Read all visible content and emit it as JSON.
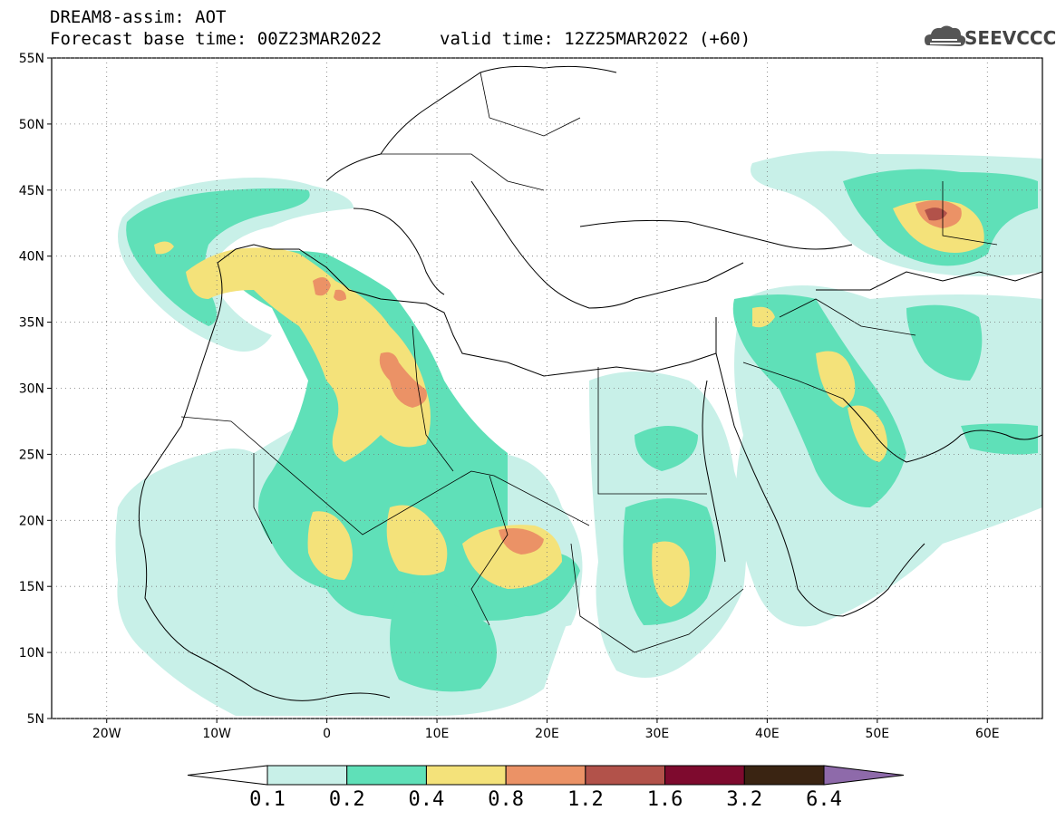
{
  "header": {
    "line1": "DREAM8-assim: AOT",
    "line2": "Forecast base time: 00Z23MAR2022",
    "line3": "valid time: 12Z25MAR2022 (+60)"
  },
  "logo": {
    "text": "SEEVCCC",
    "icon": "cloud-icon"
  },
  "axes": {
    "lon_min": -25,
    "lon_max": 65,
    "lat_min": 5,
    "lat_max": 55,
    "lat_ticks": [
      "55N",
      "50N",
      "45N",
      "40N",
      "35N",
      "30N",
      "25N",
      "20N",
      "15N",
      "10N",
      "5N"
    ],
    "lat_values": [
      55,
      50,
      45,
      40,
      35,
      30,
      25,
      20,
      15,
      10,
      5
    ],
    "lon_ticks": [
      "20W",
      "10W",
      "0",
      "10E",
      "20E",
      "30E",
      "40E",
      "50E",
      "60E"
    ],
    "lon_values": [
      -20,
      -10,
      0,
      10,
      20,
      30,
      40,
      50,
      60
    ]
  },
  "colorbar": {
    "levels": [
      "0.1",
      "0.2",
      "0.4",
      "0.8",
      "1.2",
      "1.6",
      "3.2",
      "6.4"
    ],
    "colors": [
      "#c8f0e8",
      "#5fe0b8",
      "#f4e27a",
      "#eb9266",
      "#b2524a",
      "#7e0a2e",
      "#3a2412",
      "#8e6aaa"
    ]
  }
}
